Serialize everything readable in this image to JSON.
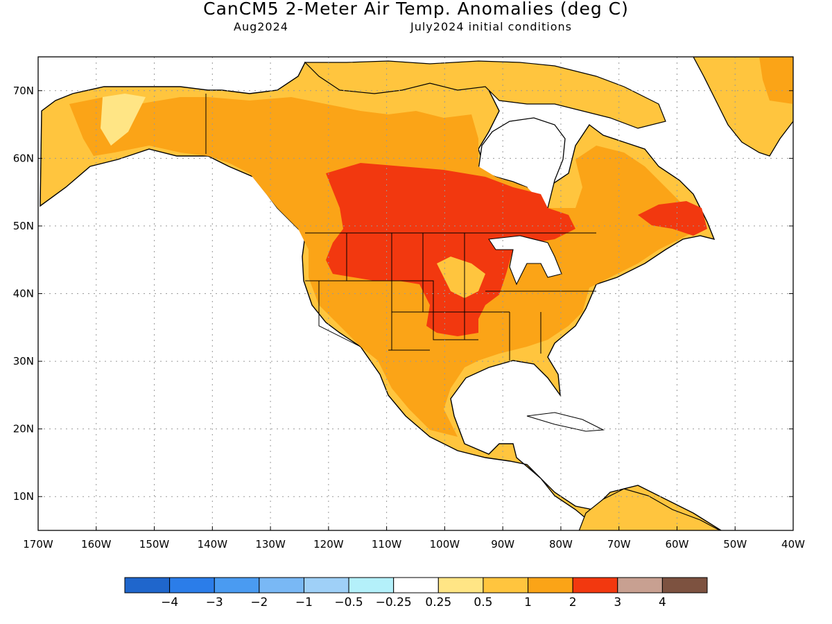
{
  "header": {
    "title": "CanCM5 2-Meter Air Temp. Anomalies (deg C)",
    "valid_month": "Aug2024",
    "init_conditions": "July2024 initial conditions"
  },
  "map": {
    "lon_range": [
      -170,
      -40
    ],
    "lat_range": [
      5,
      75
    ],
    "lon_ticks": [
      "170W",
      "160W",
      "150W",
      "140W",
      "130W",
      "120W",
      "110W",
      "100W",
      "90W",
      "80W",
      "70W",
      "60W",
      "50W",
      "40W"
    ],
    "lat_ticks": [
      "10N",
      "20N",
      "30N",
      "40N",
      "50N",
      "60N",
      "70N"
    ],
    "grid": "dotted"
  },
  "colorbar": {
    "colors": [
      "#1f66cc",
      "#2b7de9",
      "#4a9bf1",
      "#79b8f5",
      "#9fd0f7",
      "#b4f0fa",
      "#ffffff",
      "#ffe585",
      "#ffc53e",
      "#fba417",
      "#f2380f",
      "#c8a091",
      "#7d5240"
    ],
    "labels": [
      "−4",
      "−3",
      "−2",
      "−1",
      "−0.5",
      "−0.25",
      "0.25",
      "0.5",
      "1",
      "2",
      "3",
      "4"
    ]
  }
}
